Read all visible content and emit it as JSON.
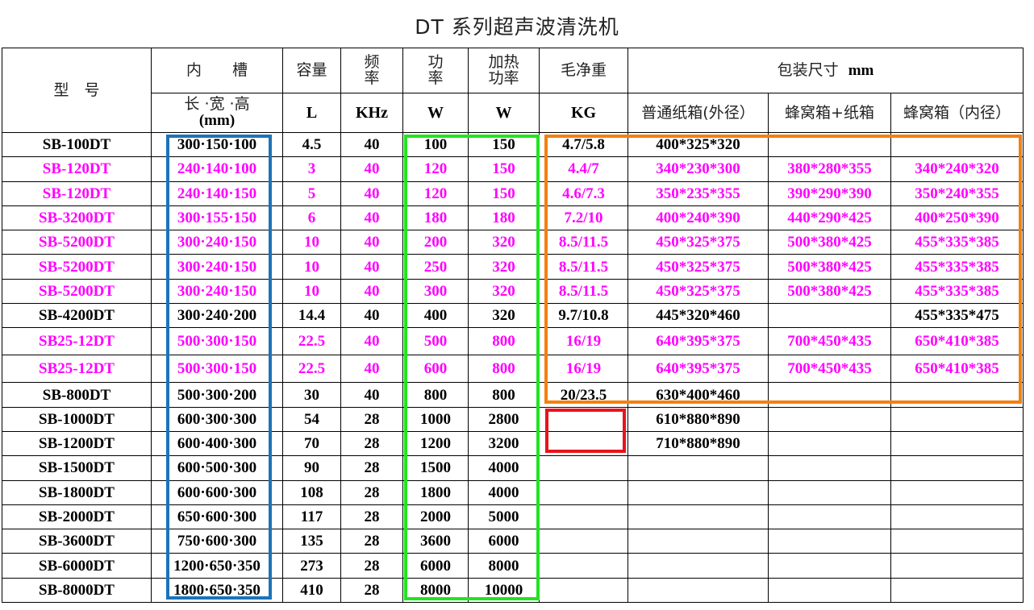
{
  "title": "DT 系列超声波清洗机",
  "header": {
    "model": "型　号",
    "inner_tank": "内　　槽",
    "dims_label": "长 ·宽 ·高",
    "dims_unit": "(mm)",
    "capacity": "容量",
    "capacity_unit": "L",
    "freq_1": "频",
    "freq_2": "率",
    "freq_unit": "KHz",
    "power_1": "功",
    "power_2": "率",
    "power_unit": "W",
    "heat_1": "加热",
    "heat_2": "功率",
    "heat_unit": "W",
    "weight": "毛净重",
    "weight_unit": "KG",
    "pack": "包装尺寸",
    "pack_unit": "mm",
    "pack_normal": "普通纸箱(外径）",
    "pack_honeycomb_carton": "蜂窝箱+纸箱",
    "pack_honeycomb_inner": "蜂窝箱（内径）"
  },
  "colors": {
    "magenta": "#ff00ff",
    "black": "#000000",
    "box_blue": "#1d73b9",
    "box_green": "#22e41f",
    "box_orange": "#f4800d",
    "box_red": "#e8131c"
  },
  "rows": [
    {
      "model": "SB-100DT",
      "dims": "300·150·100",
      "cap": "4.5",
      "freq": "40",
      "power": "100",
      "heat": "150",
      "weight": "4.7/5.8",
      "normal": "400*325*320",
      "hc": "",
      "hi": "",
      "color": "black"
    },
    {
      "model": "SB-120DT",
      "dims": "240·140·100",
      "cap": "3",
      "freq": "40",
      "power": "120",
      "heat": "150",
      "weight": "4.4/7",
      "normal": "340*230*300",
      "hc": "380*280*355",
      "hi": "340*240*320",
      "color": "magenta"
    },
    {
      "model": "SB-120DT",
      "dims": "240·140·150",
      "cap": "5",
      "freq": "40",
      "power": "120",
      "heat": "150",
      "weight": "4.6/7.3",
      "normal": "350*235*355",
      "hc": "390*290*390",
      "hi": "350*240*355",
      "color": "magenta"
    },
    {
      "model": "SB-3200DT",
      "dims": "300·155·150",
      "cap": "6",
      "freq": "40",
      "power": "180",
      "heat": "180",
      "weight": "7.2/10",
      "normal": "400*240*390",
      "hc": "440*290*425",
      "hi": "400*250*390",
      "color": "magenta"
    },
    {
      "model": "SB-5200DT",
      "dims": "300·240·150",
      "cap": "10",
      "freq": "40",
      "power": "200",
      "heat": "320",
      "weight": "8.5/11.5",
      "normal": "450*325*375",
      "hc": "500*380*425",
      "hi": "455*335*385",
      "color": "magenta"
    },
    {
      "model": "SB-5200DT",
      "dims": "300·240·150",
      "cap": "10",
      "freq": "40",
      "power": "250",
      "heat": "320",
      "weight": "8.5/11.5",
      "normal": "450*325*375",
      "hc": "500*380*425",
      "hi": "455*335*385",
      "color": "magenta"
    },
    {
      "model": "SB-5200DT",
      "dims": "300·240·150",
      "cap": "10",
      "freq": "40",
      "power": "300",
      "heat": "320",
      "weight": "8.5/11.5",
      "normal": "450*325*375",
      "hc": "500*380*425",
      "hi": "455*335*385",
      "color": "magenta"
    },
    {
      "model": "SB-4200DT",
      "dims": "300·240·200",
      "cap": "14.4",
      "freq": "40",
      "power": "400",
      "heat": "320",
      "weight": "9.7/10.8",
      "normal": "445*320*460",
      "hc": "",
      "hi": "455*335*475",
      "color": "black"
    },
    {
      "model": "SB25-12DT",
      "dims": "500·300·150",
      "cap": "22.5",
      "freq": "40",
      "power": "500",
      "heat": "800",
      "weight": "16/19",
      "normal": "640*395*375",
      "hc": "700*450*435",
      "hi": "650*410*385",
      "color": "magenta"
    },
    {
      "model": "SB25-12DT",
      "dims": "500·300·150",
      "cap": "22.5",
      "freq": "40",
      "power": "600",
      "heat": "800",
      "weight": "16/19",
      "normal": "640*395*375",
      "hc": "700*450*435",
      "hi": "650*410*385",
      "color": "magenta"
    },
    {
      "model": "SB-800DT",
      "dims": "500·300·200",
      "cap": "30",
      "freq": "40",
      "power": "800",
      "heat": "800",
      "weight": "20/23.5",
      "normal": "630*400*460",
      "hc": "",
      "hi": "",
      "color": "black"
    },
    {
      "model": "SB-1000DT",
      "dims": "600·300·300",
      "cap": "54",
      "freq": "28",
      "power": "1000",
      "heat": "2800",
      "weight": "",
      "normal": "610*880*890",
      "hc": "",
      "hi": "",
      "color": "black"
    },
    {
      "model": "SB-1200DT",
      "dims": "600·400·300",
      "cap": "70",
      "freq": "28",
      "power": "1200",
      "heat": "3200",
      "weight": "",
      "normal": "710*880*890",
      "hc": "",
      "hi": "",
      "color": "black"
    },
    {
      "model": "SB-1500DT",
      "dims": "600·500·300",
      "cap": "90",
      "freq": "28",
      "power": "1500",
      "heat": "4000",
      "weight": "",
      "normal": "",
      "hc": "",
      "hi": "",
      "color": "black"
    },
    {
      "model": "SB-1800DT",
      "dims": "600·600·300",
      "cap": "108",
      "freq": "28",
      "power": "1800",
      "heat": "4000",
      "weight": "",
      "normal": "",
      "hc": "",
      "hi": "",
      "color": "black"
    },
    {
      "model": "SB-2000DT",
      "dims": "650·600·300",
      "cap": "117",
      "freq": "28",
      "power": "2000",
      "heat": "5000",
      "weight": "",
      "normal": "",
      "hc": "",
      "hi": "",
      "color": "black"
    },
    {
      "model": "SB-3600DT",
      "dims": "750·600·300",
      "cap": "135",
      "freq": "28",
      "power": "3600",
      "heat": "6000",
      "weight": "",
      "normal": "",
      "hc": "",
      "hi": "",
      "color": "black"
    },
    {
      "model": "SB-6000DT",
      "dims": "1200·650·350",
      "cap": "273",
      "freq": "28",
      "power": "6000",
      "heat": "8000",
      "weight": "",
      "normal": "",
      "hc": "",
      "hi": "",
      "color": "black"
    },
    {
      "model": "SB-8000DT",
      "dims": "1800·650·350",
      "cap": "410",
      "freq": "28",
      "power": "8000",
      "heat": "10000",
      "weight": "",
      "normal": "",
      "hc": "",
      "hi": "",
      "color": "black"
    }
  ]
}
